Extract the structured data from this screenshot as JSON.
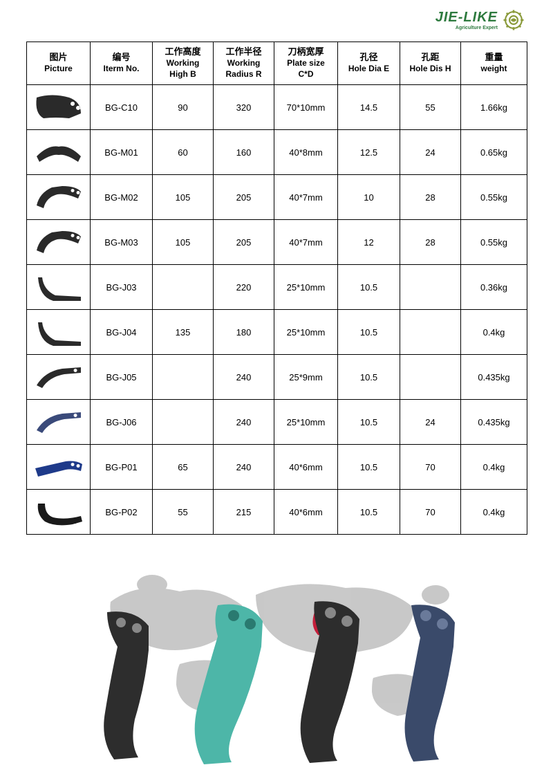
{
  "logo": {
    "main": "JIE-LIKE",
    "sub": "Agriculture Expert",
    "gear_color": "#8a9a3a",
    "text_color": "#2d7a3e"
  },
  "table": {
    "columns": [
      {
        "cn": "图片",
        "en": "Picture"
      },
      {
        "cn": "编号",
        "en": "Iterm No."
      },
      {
        "cn": "工作高度",
        "en": "Working",
        "en2": "High B"
      },
      {
        "cn": "工作半径",
        "en": "Working",
        "en2": "Radius R"
      },
      {
        "cn": "刀柄宽厚",
        "en": "Plate size",
        "en2": "C*D"
      },
      {
        "cn": "孔径",
        "en": "Hole Dia E"
      },
      {
        "cn": "孔距",
        "en": "Hole Dis H"
      },
      {
        "cn": "重量",
        "en": "weight"
      }
    ],
    "rows": [
      {
        "item": "BG-C10",
        "high": "90",
        "radius": "320",
        "plate": "70*10mm",
        "dia": "14.5",
        "dis": "55",
        "weight": "1.66kg",
        "shape": "wide-curve",
        "color": "#2a2a2a"
      },
      {
        "item": "BG-M01",
        "high": "60",
        "radius": "160",
        "plate": "40*8mm",
        "dia": "12.5",
        "dis": "24",
        "weight": "0.65kg",
        "shape": "shallow-v",
        "color": "#2a2a2a"
      },
      {
        "item": "BG-M02",
        "high": "105",
        "radius": "205",
        "plate": "40*7mm",
        "dia": "10",
        "dis": "28",
        "weight": "0.55kg",
        "shape": "boomerang",
        "color": "#2a2a2a"
      },
      {
        "item": "BG-M03",
        "high": "105",
        "radius": "205",
        "plate": "40*7mm",
        "dia": "12",
        "dis": "28",
        "weight": "0.55kg",
        "shape": "boomerang",
        "color": "#2a2a2a"
      },
      {
        "item": "BG-J03",
        "high": "",
        "radius": "220",
        "plate": "25*10mm",
        "dia": "10.5",
        "dis": "",
        "weight": "0.36kg",
        "shape": "thin-l",
        "color": "#2a2a2a"
      },
      {
        "item": "BG-J04",
        "high": "135",
        "radius": "180",
        "plate": "25*10mm",
        "dia": "10.5",
        "dis": "",
        "weight": "0.4kg",
        "shape": "thin-l",
        "color": "#2a2a2a"
      },
      {
        "item": "BG-J05",
        "high": "",
        "radius": "240",
        "plate": "25*9mm",
        "dia": "10.5",
        "dis": "",
        "weight": "0.435kg",
        "shape": "thin-curve",
        "color": "#2a2a2a"
      },
      {
        "item": "BG-J06",
        "high": "",
        "radius": "240",
        "plate": "25*10mm",
        "dia": "10.5",
        "dis": "24",
        "weight": "0.435kg",
        "shape": "thin-curve",
        "color": "#3a4a7a"
      },
      {
        "item": "BG-P01",
        "high": "65",
        "radius": "240",
        "plate": "40*6mm",
        "dia": "10.5",
        "dis": "70",
        "weight": "0.4kg",
        "shape": "flat-blade",
        "color": "#1e3a8a"
      },
      {
        "item": "BG-P02",
        "high": "55",
        "radius": "215",
        "plate": "40*6mm",
        "dia": "10.5",
        "dis": "70",
        "weight": "0.4kg",
        "shape": "hook",
        "color": "#1a1a1a"
      }
    ],
    "border_color": "#000000",
    "background_color": "#ffffff",
    "header_fontsize": 13,
    "cell_fontsize": 13
  },
  "bottom": {
    "map_fill": "#bfbfbf",
    "china_fill": "#c41e3a",
    "blades": [
      {
        "color": "#2d2d2d",
        "pos": "left"
      },
      {
        "color": "#4db6a8",
        "pos": "center-left"
      },
      {
        "color": "#2d2d2d",
        "pos": "center-right"
      },
      {
        "color": "#3a4a6a",
        "pos": "right"
      }
    ]
  }
}
